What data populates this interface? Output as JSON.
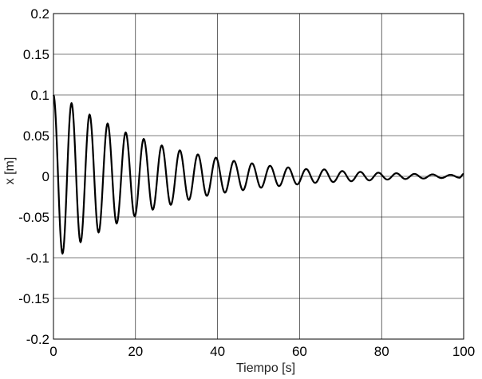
{
  "chart_data": {
    "type": "line",
    "title": "",
    "xlabel": "Tiempo [s]",
    "ylabel": "x [m]",
    "xlim": [
      0,
      100
    ],
    "ylim": [
      -0.2,
      0.2
    ],
    "grid": true,
    "legend": "none",
    "x_ticks": [
      0,
      20,
      40,
      60,
      80,
      100
    ],
    "x_tick_labels": [
      "0",
      "20",
      "40",
      "60",
      "80",
      "100"
    ],
    "y_ticks": [
      -0.2,
      -0.15,
      -0.1,
      -0.05,
      0,
      0.05,
      0.1,
      0.15,
      0.2
    ],
    "y_tick_labels": [
      "-0.2",
      "-0.15",
      "-0.1",
      "-0.05",
      "0",
      "0.05",
      "0.1",
      "0.15",
      "0.2"
    ],
    "colors": {
      "line": "#000000",
      "grid": "#000000",
      "background": "#ffffff"
    },
    "series": [
      {
        "x": [
          0,
          2.2,
          4.4,
          6.6,
          8.8,
          11.0,
          13.2,
          15.4,
          17.6,
          19.8,
          22.0,
          24.2,
          26.4,
          28.6,
          30.8,
          33.0,
          35.2,
          37.4,
          39.6,
          41.8,
          44.0,
          46.2,
          48.4,
          50.6,
          52.8,
          55.0,
          57.2,
          59.4,
          61.6,
          63.8,
          66.0,
          68.2,
          70.4,
          72.6,
          74.8,
          77.0,
          79.2,
          81.4,
          83.6,
          85.8,
          88.0,
          90.2,
          92.4,
          94.6,
          96.8,
          99.0,
          100
        ],
        "y": [
          0.1,
          -0.095,
          0.09,
          -0.081,
          0.076,
          -0.069,
          0.065,
          -0.058,
          0.054,
          -0.049,
          0.046,
          -0.041,
          0.038,
          -0.035,
          0.032,
          -0.029,
          0.027,
          -0.024,
          0.023,
          -0.02,
          0.019,
          -0.017,
          0.016,
          -0.014,
          0.013,
          -0.012,
          0.011,
          -0.01,
          0.009,
          -0.008,
          0.0085,
          -0.007,
          0.0065,
          -0.006,
          0.0055,
          -0.005,
          0.0045,
          -0.004,
          0.0038,
          -0.0033,
          0.003,
          -0.0027,
          0.0024,
          -0.0021,
          0.0019,
          -0.0017,
          0.003
        ]
      }
    ]
  }
}
